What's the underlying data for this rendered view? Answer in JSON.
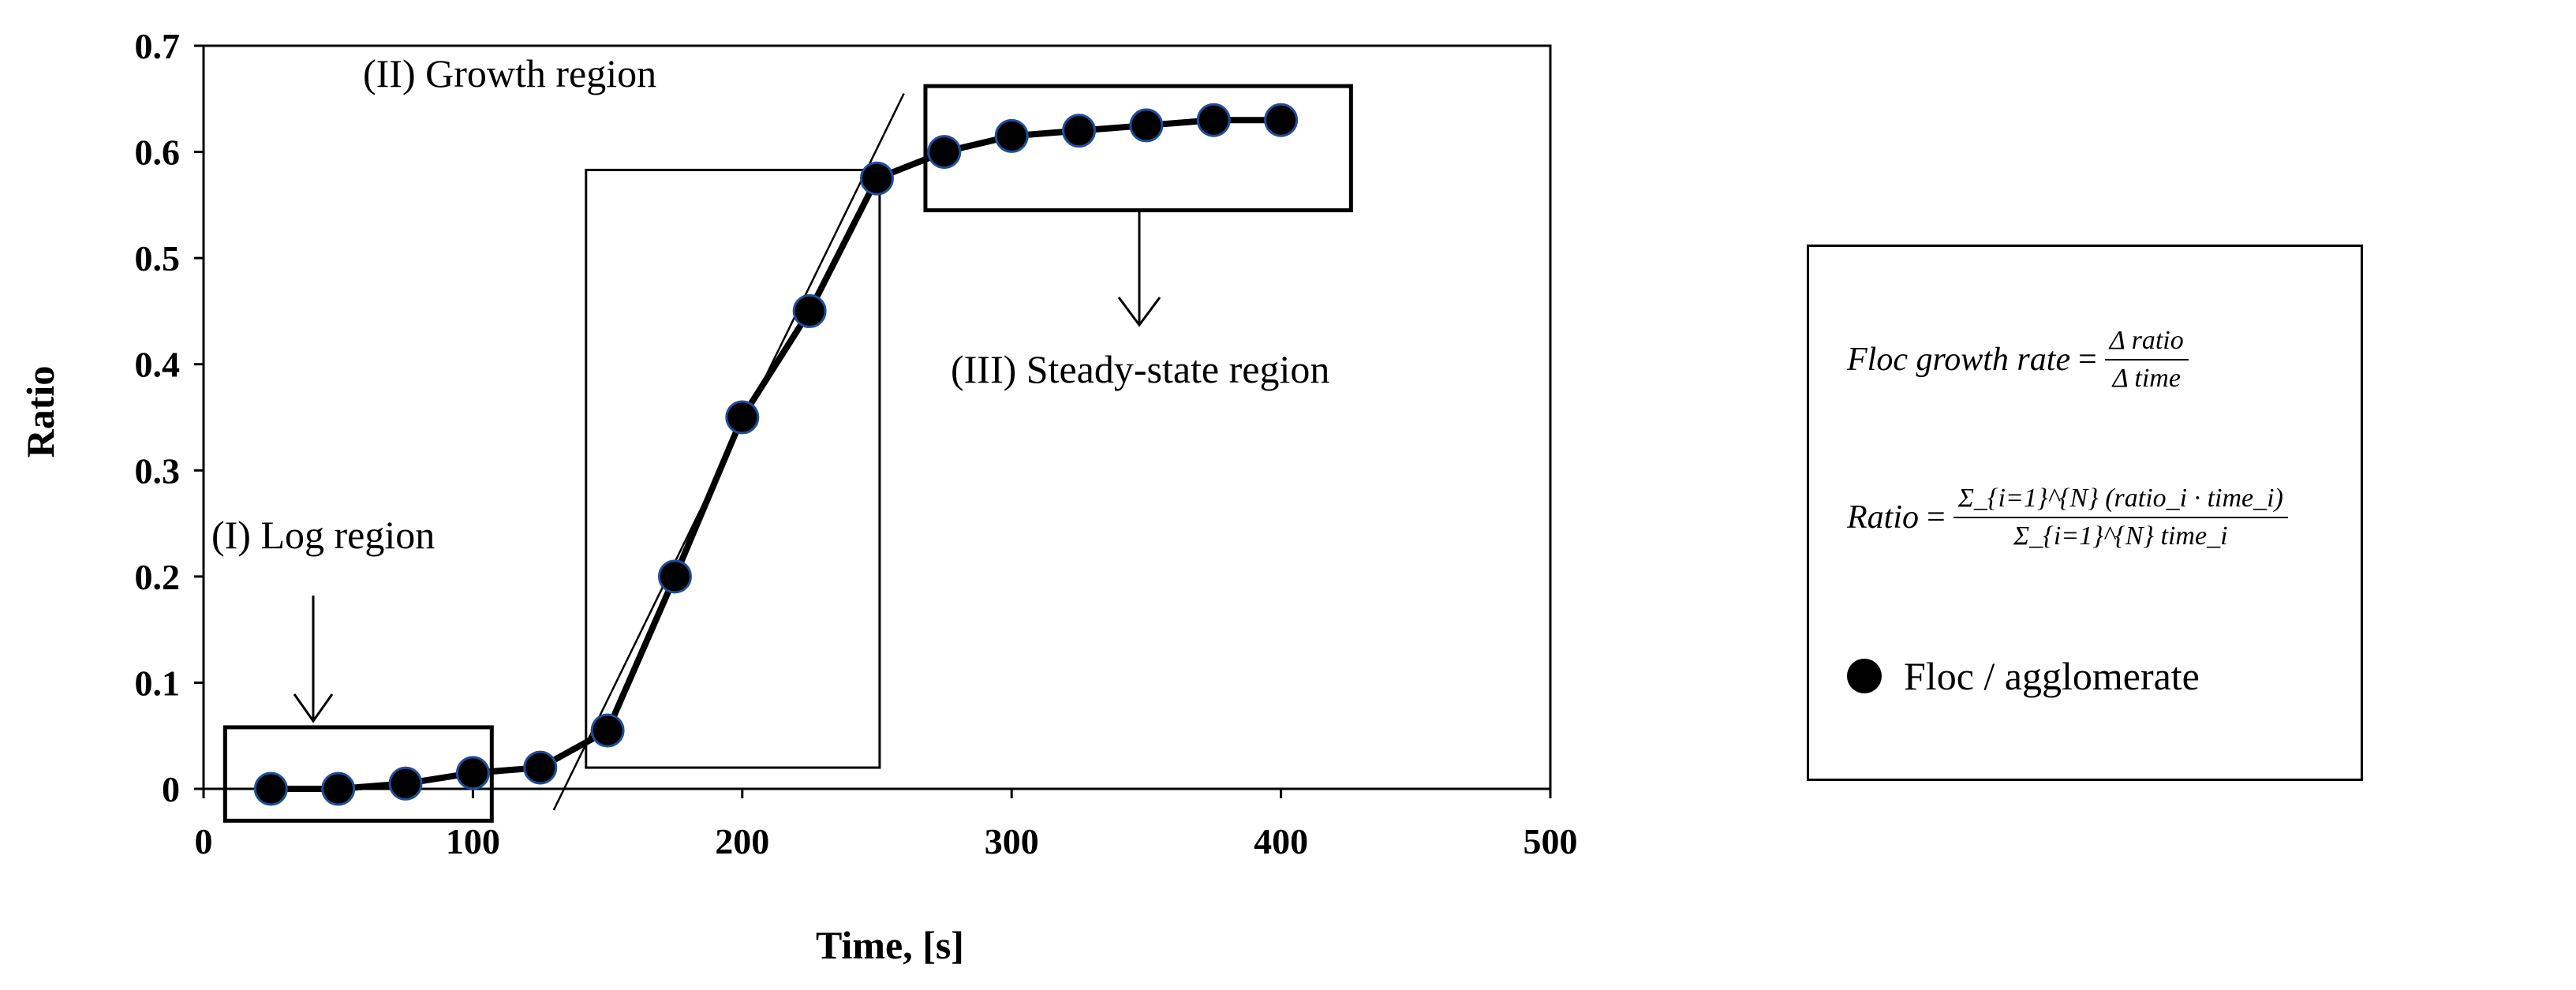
{
  "chart_data": {
    "type": "line",
    "title": "",
    "xlabel": "Time, [s]",
    "ylabel": "Ratio",
    "xlim": [
      0,
      500
    ],
    "ylim": [
      0,
      0.7
    ],
    "xticks": [
      0,
      100,
      200,
      300,
      400,
      500
    ],
    "yticks": [
      0,
      0.1,
      0.2,
      0.3,
      0.4,
      0.5,
      0.6,
      0.7
    ],
    "xtick_labels": [
      "0",
      "100",
      "200",
      "300",
      "400",
      "500"
    ],
    "ytick_labels": [
      "0",
      "0.1",
      "0.2",
      "0.3",
      "0.4",
      "0.5",
      "0.6",
      "0.7"
    ],
    "grid": false,
    "series": [
      {
        "name": "Floc / agglomerate",
        "x": [
          25,
          50,
          75,
          100,
          125,
          150,
          175,
          200,
          225,
          250,
          275,
          300,
          325,
          350,
          375,
          400
        ],
        "y": [
          0.0,
          0.0,
          0.005,
          0.015,
          0.02,
          0.055,
          0.2,
          0.35,
          0.45,
          0.575,
          0.6,
          0.615,
          0.62,
          0.625,
          0.63,
          0.63
        ]
      }
    ],
    "tangent_line": {
      "x": [
        130,
        260
      ],
      "y": [
        -0.02,
        0.655
      ]
    },
    "regions": [
      {
        "label": "(I) Log region",
        "x": [
          8,
          107
        ],
        "y": [
          -0.03,
          0.058
        ]
      },
      {
        "label": "(II) Growth region",
        "x": [
          142,
          251
        ],
        "y": [
          0.02,
          0.583
        ]
      },
      {
        "label": "(III) Steady-state region",
        "x": [
          268,
          426
        ],
        "y": [
          0.545,
          0.662
        ]
      }
    ],
    "annotations": {
      "log_region": "(I) Log region",
      "growth_region": "(II) Growth region",
      "steady_region": "(III) Steady-state region"
    }
  },
  "legend": {
    "formula1": {
      "lhs": "Floc growth rate",
      "eq": "=",
      "num": "Δ ratio",
      "den": "Δ time"
    },
    "formula2": {
      "lhs": "Ratio",
      "eq": "=",
      "num": "Σ_{i=1}^{N} (ratio_i · time_i)",
      "den": "Σ_{i=1}^{N} time_i"
    },
    "entry_label": "Floc / agglomerate"
  },
  "colors": {
    "line": "#000000",
    "marker": "#000000",
    "marker_edge": "#1f4e9a"
  }
}
